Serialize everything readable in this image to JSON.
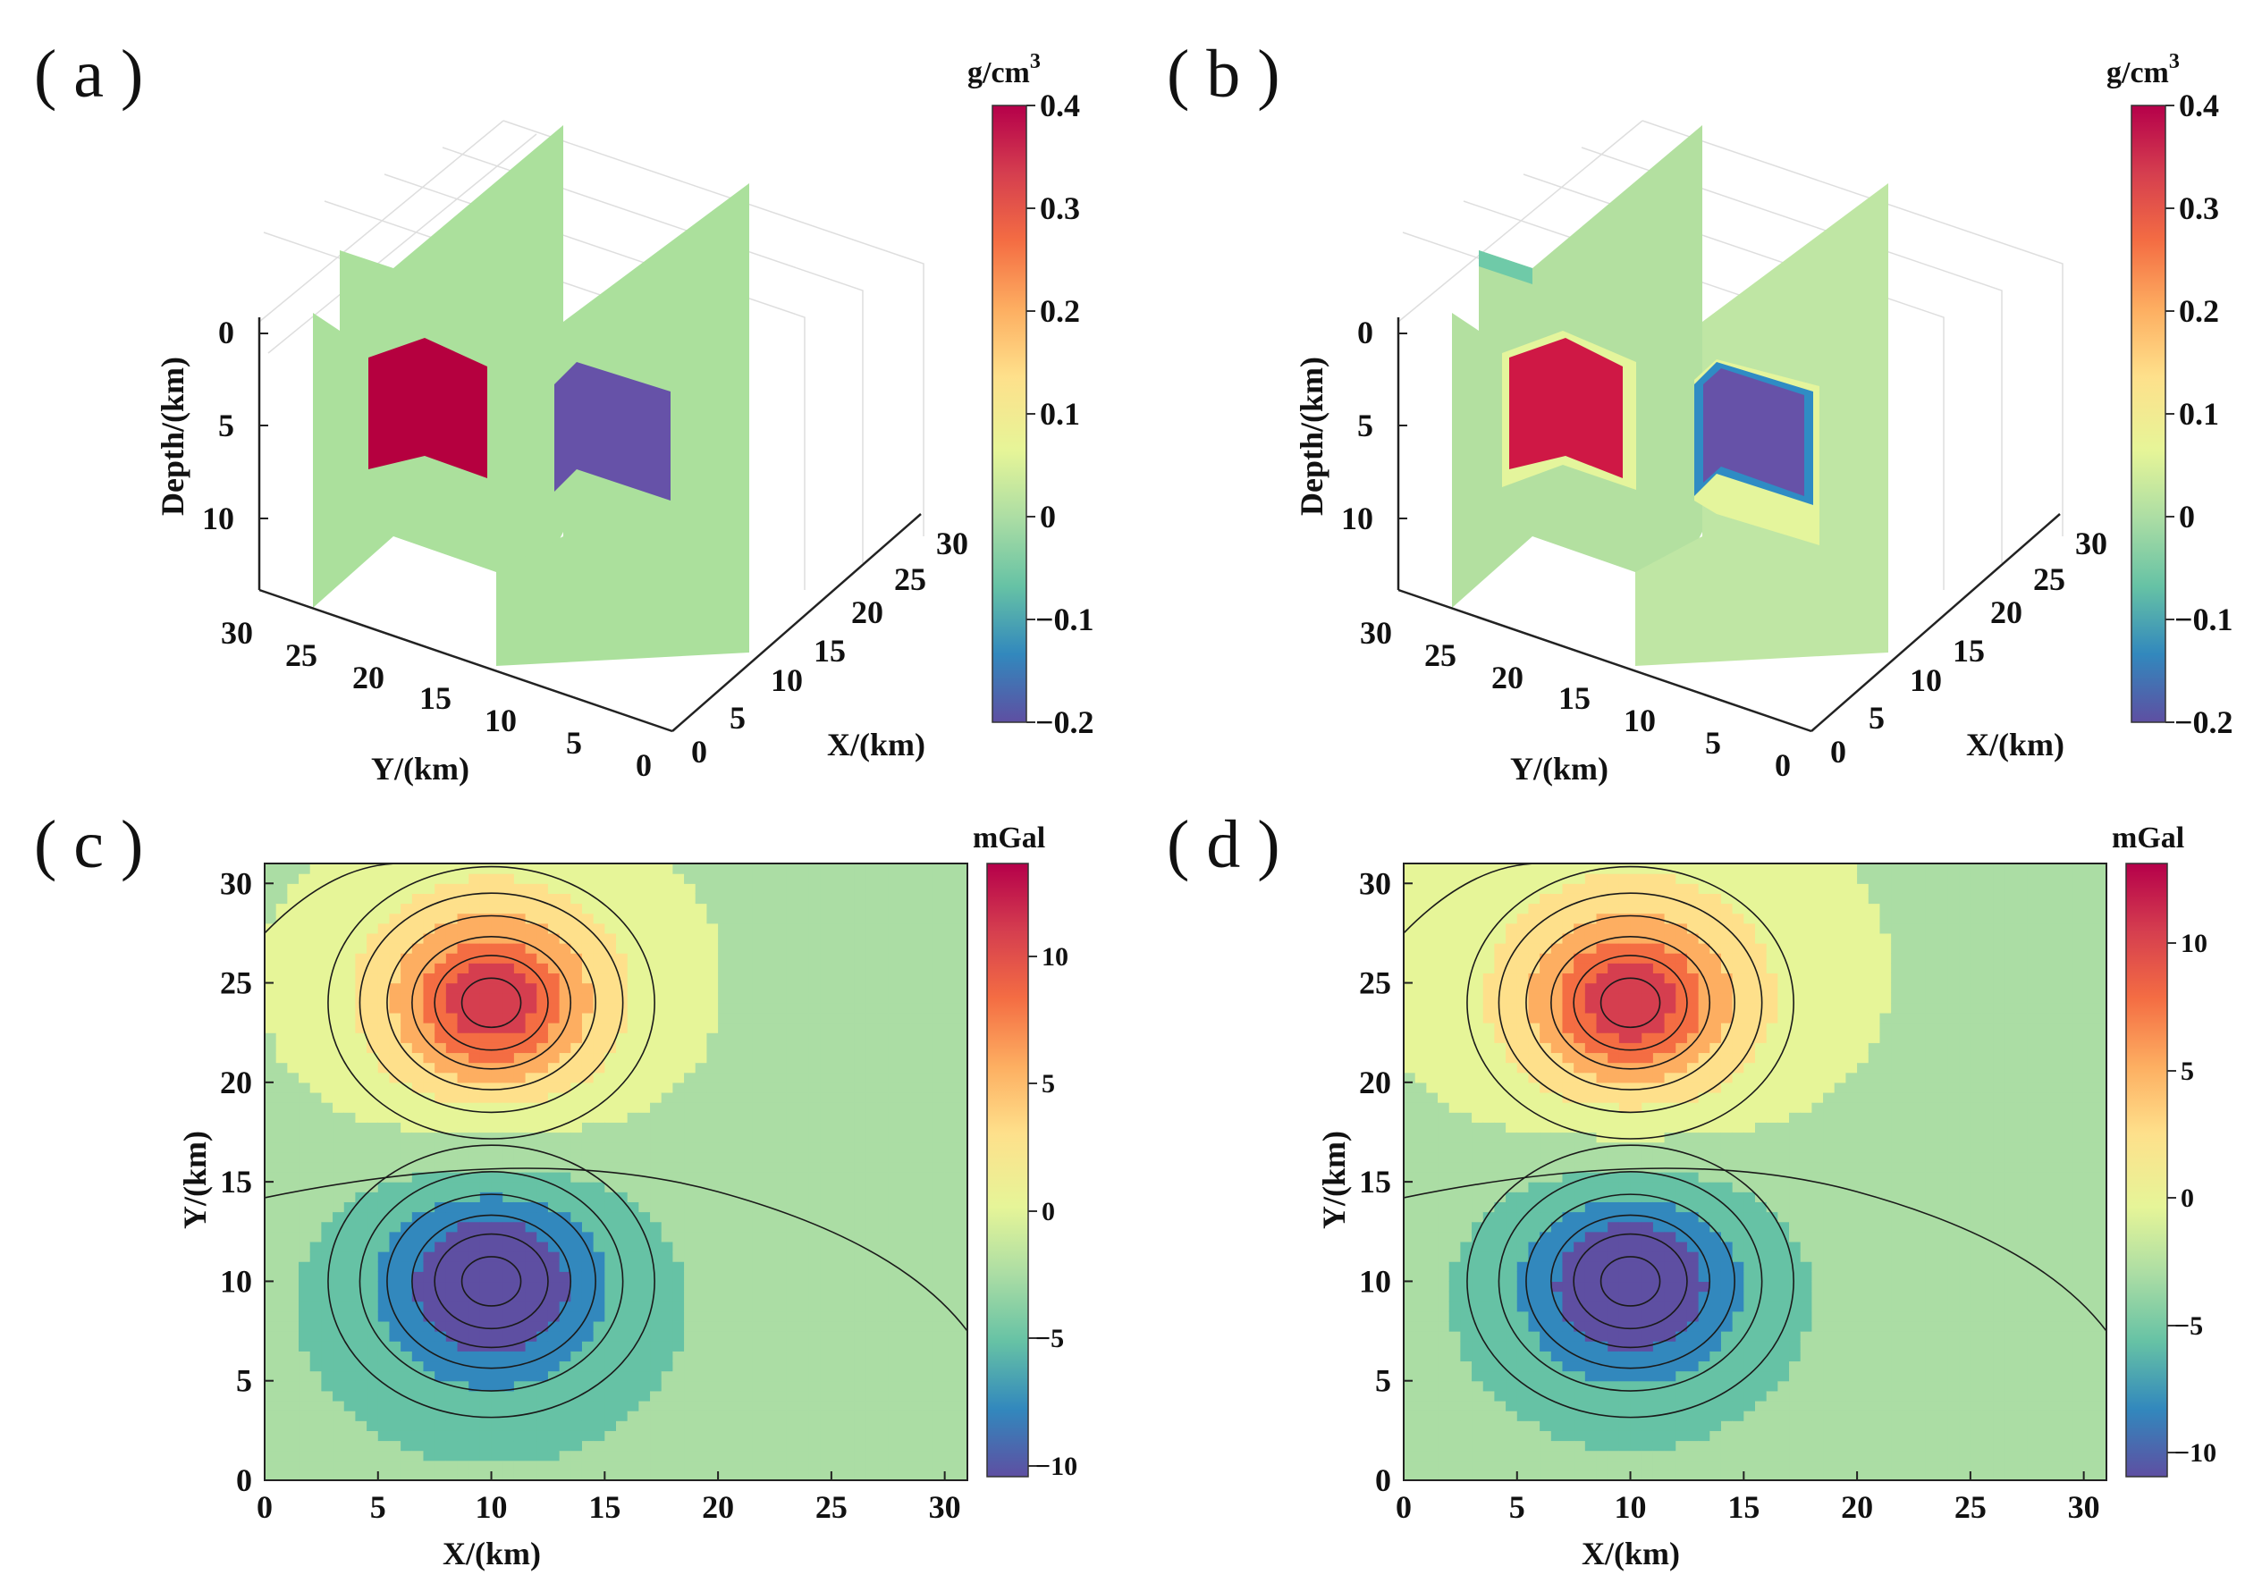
{
  "panels": {
    "a": {
      "label": "( a )"
    },
    "b": {
      "label": "( b )"
    },
    "c": {
      "label": "( c )"
    },
    "d": {
      "label": "( d )"
    }
  },
  "colormap": [
    "#5e4fa2",
    "#3288bd",
    "#66c2a5",
    "#abdda4",
    "#e6f598",
    "#fee08b",
    "#fdae61",
    "#f46d43",
    "#d53e4f",
    "#b5004a"
  ],
  "chart_data": [
    {
      "id": "a",
      "type": "slice3d",
      "title": "( a )",
      "xlabel": "X/(km)",
      "ylabel": "Y/(km)",
      "zlabel": "Depth/(km)",
      "x_ticks": [
        "0",
        "5",
        "10",
        "15",
        "20",
        "25",
        "30"
      ],
      "y_ticks": [
        "0",
        "5",
        "10",
        "15",
        "20",
        "25",
        "30"
      ],
      "z_ticks": [
        "0",
        "5",
        "10"
      ],
      "slices": [
        "y = 10",
        "y = 24"
      ],
      "bodies": [
        {
          "name": "positive block",
          "value": 0.4,
          "color": "#b5003f"
        },
        {
          "name": "negative block",
          "value": -0.2,
          "color": "#6652a8"
        }
      ],
      "background_value": 0.0,
      "colorbar": {
        "unit": "g/cm",
        "unit_sup": "3",
        "ticks": [
          "0.4",
          "0.3",
          "0.2",
          "0.1",
          "0",
          "−0.1",
          "−0.2"
        ],
        "range": [
          -0.2,
          0.4
        ]
      }
    },
    {
      "id": "b",
      "type": "slice3d",
      "title": "( b )",
      "xlabel": "X/(km)",
      "ylabel": "Y/(km)",
      "zlabel": "Depth/(km)",
      "x_ticks": [
        "0",
        "5",
        "10",
        "15",
        "20",
        "25",
        "30"
      ],
      "y_ticks": [
        "0",
        "5",
        "10",
        "15",
        "20",
        "25",
        "30"
      ],
      "z_ticks": [
        "0",
        "5",
        "10"
      ],
      "slices": [
        "y = 10",
        "y = 24"
      ],
      "bodies": [
        {
          "name": "recovered positive block",
          "value": 0.38,
          "color": "#c8103f"
        },
        {
          "name": "recovered negative block",
          "value": -0.2,
          "color": "#6652a8"
        }
      ],
      "background_value": 0.0,
      "colorbar": {
        "unit": "g/cm",
        "unit_sup": "3",
        "ticks": [
          "0.4",
          "0.3",
          "0.2",
          "0.1",
          "0",
          "−0.1",
          "−0.2"
        ],
        "range": [
          -0.2,
          0.4
        ]
      }
    },
    {
      "id": "c",
      "type": "contour",
      "title": "( c )",
      "xlabel": "X/(km)",
      "ylabel": "Y/(km)",
      "xlim": [
        0,
        31
      ],
      "ylim": [
        0,
        31
      ],
      "x_ticks": [
        "0",
        "5",
        "10",
        "15",
        "20",
        "25",
        "30"
      ],
      "y_ticks": [
        "0",
        "5",
        "10",
        "15",
        "20",
        "25",
        "30"
      ],
      "anomalies": [
        {
          "x": 10,
          "y": 24,
          "amplitude": 13
        },
        {
          "x": 10,
          "y": 10,
          "amplitude": -10.5
        }
      ],
      "colorbar": {
        "unit": "mGal",
        "ticks": [
          "10",
          "5",
          "0",
          "−5",
          "−10"
        ],
        "range": [
          -10.5,
          13
        ]
      }
    },
    {
      "id": "d",
      "type": "contour",
      "title": "( d )",
      "xlabel": "X/(km)",
      "ylabel": "Y/(km)",
      "xlim": [
        0,
        31
      ],
      "ylim": [
        0,
        31
      ],
      "x_ticks": [
        "0",
        "5",
        "10",
        "15",
        "20",
        "25",
        "30"
      ],
      "y_ticks": [
        "0",
        "5",
        "10",
        "15",
        "20",
        "25",
        "30"
      ],
      "anomalies": [
        {
          "x": 10,
          "y": 24,
          "amplitude": 13
        },
        {
          "x": 10,
          "y": 10,
          "amplitude": -11
        }
      ],
      "colorbar": {
        "unit": "mGal",
        "ticks": [
          "10",
          "5",
          "0",
          "−5",
          "−10"
        ],
        "range": [
          -11,
          13
        ]
      }
    }
  ]
}
